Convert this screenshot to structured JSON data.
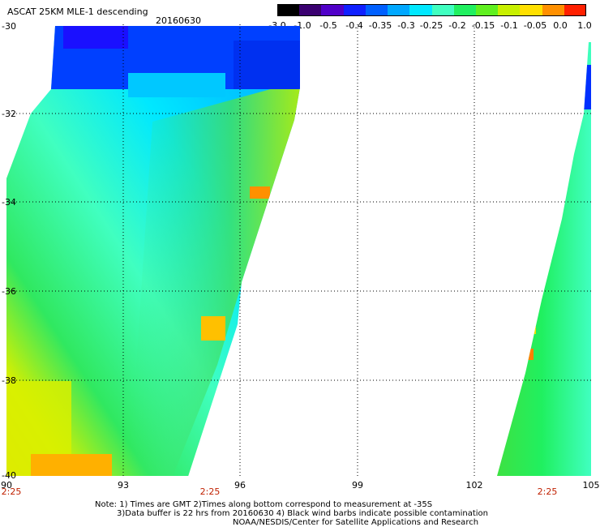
{
  "title": "ASCAT 25KM MLE-1 descending",
  "date": "20160630",
  "colorbar": {
    "labels": [
      "-3.0",
      "-1.0",
      "-0.5",
      "-0.4",
      "-0.35",
      "-0.3",
      "-0.25",
      "-0.2",
      "-0.15",
      "-0.1",
      "-0.05",
      "0.0",
      "1.0"
    ],
    "colors": [
      "#000000",
      "#3a0070",
      "#5000c8",
      "#1020ff",
      "#0060ff",
      "#00a8ff",
      "#00e8ff",
      "#40ffc0",
      "#20f060",
      "#60f020",
      "#c8f000",
      "#ffe000",
      "#ff9000",
      "#ff2000"
    ]
  },
  "axes": {
    "lat_labels": [
      "-30",
      "-32",
      "-34",
      "-36",
      "-38",
      "-40"
    ],
    "lon_labels": [
      "90",
      "93",
      "96",
      "99",
      "102",
      "105"
    ],
    "time_labels": [
      "2:25",
      "2:25",
      "2:25"
    ]
  },
  "notes": [
    "Note: 1) Times are GMT 2)Times along bottom correspond to measurement at -35S",
    "3)Data buffer is 22 hrs from 20160630 4) Black wind barbs indicate possible contamination",
    "NOAA/NESDIS/Center for Satellite Applications and Research"
  ],
  "chart_data": {
    "type": "heatmap",
    "title": "ASCAT 25KM MLE-1 descending",
    "date": "20160630",
    "lon_range": [
      90,
      105
    ],
    "lat_range": [
      -40,
      -30
    ],
    "lon_ticks": [
      90,
      93,
      96,
      99,
      102,
      105
    ],
    "lat_ticks": [
      -30,
      -32,
      -34,
      -36,
      -38,
      -40
    ],
    "color_levels": [
      -3.0,
      -1.0,
      -0.5,
      -0.4,
      -0.35,
      -0.3,
      -0.25,
      -0.2,
      -0.15,
      -0.1,
      -0.05,
      0.0,
      1.0
    ],
    "grid": true,
    "swath_passes": [
      {
        "time_gmt": "2:25",
        "lon_at_35S": 90
      },
      {
        "time_gmt": "2:25",
        "lon_at_35S": 95
      },
      {
        "time_gmt": "2:25",
        "lon_at_35S": 104
      }
    ]
  }
}
